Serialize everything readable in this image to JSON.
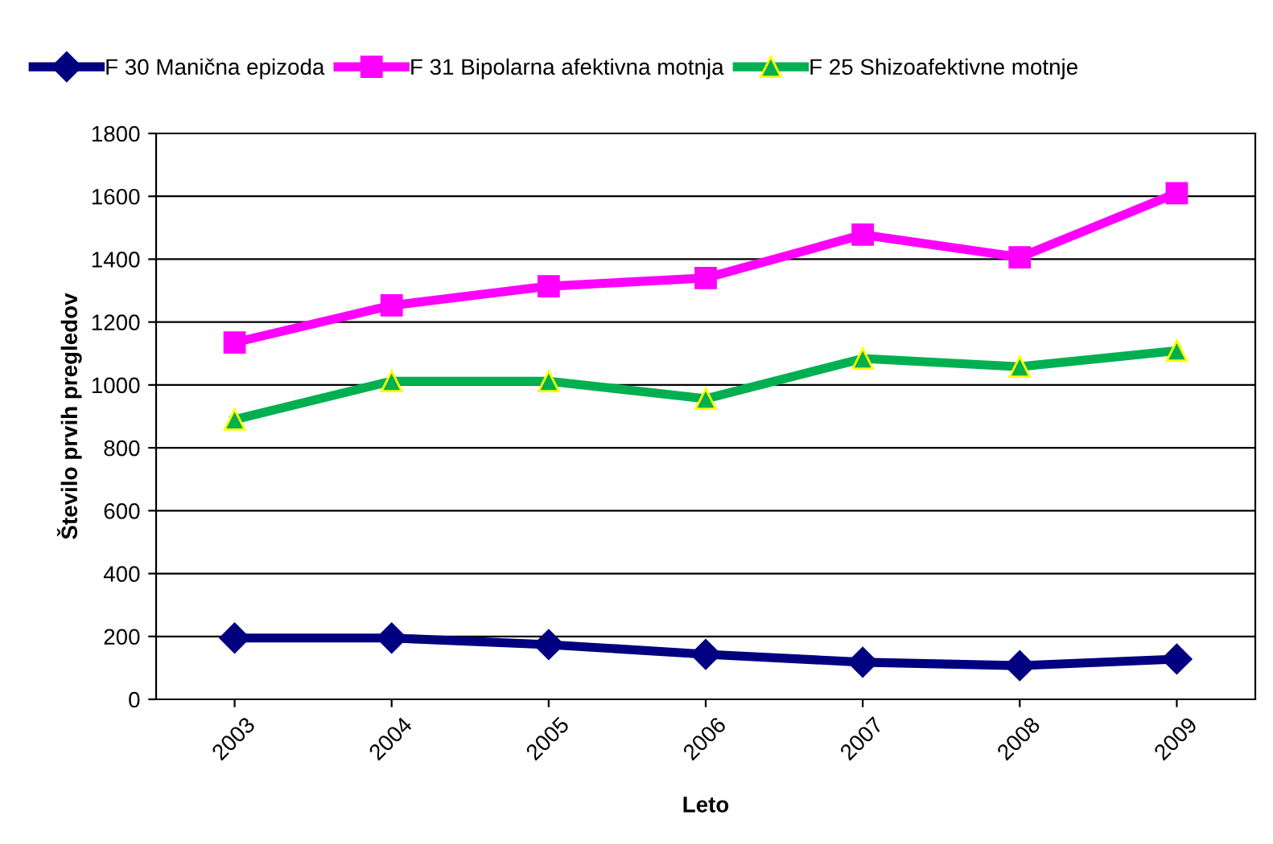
{
  "chart_data": {
    "type": "line",
    "xlabel": "Leto",
    "ylabel": "Število prvih pregledov",
    "categories": [
      "2003",
      "2004",
      "2005",
      "2006",
      "2007",
      "2008",
      "2009"
    ],
    "series": [
      {
        "name": "F 30 Manična epizoda",
        "color": "#000080",
        "marker": "diamond",
        "values": [
          195,
          195,
          174,
          143,
          118,
          107,
          128
        ]
      },
      {
        "name": "F 31 Bipolarna afektivna motnja",
        "color": "#ff00ff",
        "marker": "square",
        "values": [
          1135,
          1253,
          1314,
          1340,
          1478,
          1406,
          1610
        ]
      },
      {
        "name": "F 25 Shizoafektivne motnje",
        "color": "#00b050",
        "marker": "triangle",
        "values": [
          890,
          1012,
          1012,
          956,
          1084,
          1058,
          1109
        ]
      }
    ],
    "ylim": [
      0,
      1800
    ],
    "yticks": [
      0,
      200,
      400,
      600,
      800,
      1000,
      1200,
      1400,
      1600,
      1800
    ],
    "grid": "y",
    "legend": "top",
    "line_style": "solid"
  }
}
